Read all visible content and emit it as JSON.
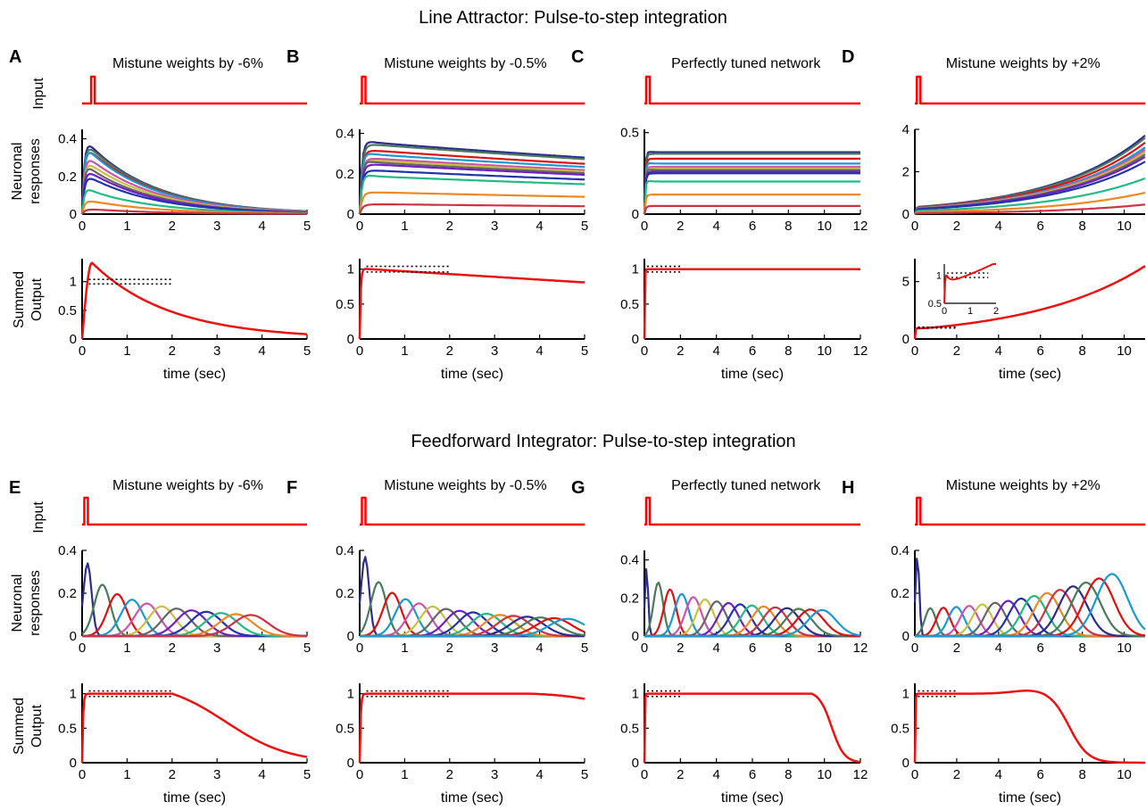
{
  "titles": {
    "top": "Line Attractor: Pulse-to-step integration",
    "bottom": "Feedforward Integrator: Pulse-to-step integration"
  },
  "row_labels": {
    "input": "Input",
    "neuronal_1": "Neuronal",
    "neuronal_2": "responses",
    "summed_1": "Summed",
    "summed_2": "Output"
  },
  "xlabel": "time (sec)",
  "colors": {
    "input": "#ff0000",
    "output": "#ee1111",
    "axis": "#000000",
    "dotted": "#000000",
    "neurons": [
      "#2c2c8c",
      "#4a7a5a",
      "#dd1111",
      "#1a9ad0",
      "#cc55aa",
      "#c8c040",
      "#666666",
      "#7020c0",
      "#2233aa",
      "#22bb88",
      "#ee8822",
      "#cc3344"
    ]
  },
  "chart_data": [
    {
      "id": "A",
      "network": "line-attractor",
      "subtitle": "Mistune weights by -6%",
      "type": "line",
      "input": {
        "pulse_t": 0.2,
        "xmax": 5
      },
      "neuronal": {
        "xlim": [
          0,
          5
        ],
        "ylim": [
          0,
          0.45
        ],
        "xticks": [
          0,
          1,
          2,
          3,
          4,
          5
        ],
        "yticks": [
          0,
          0.2,
          0.4
        ],
        "initial": [
          0.41,
          0.4,
          0.38,
          0.37,
          0.33,
          0.3,
          0.27,
          0.25,
          0.22,
          0.14,
          0.08,
          0.03
        ],
        "rate_per_sec": -0.66
      },
      "summed": {
        "xlim": [
          0,
          5
        ],
        "ylim": [
          0,
          1.4
        ],
        "xticks": [
          0,
          1,
          2,
          3,
          4,
          5
        ],
        "yticks": [
          0,
          0.5,
          1
        ],
        "peak": 1.33,
        "peak_t": 0.22,
        "end_value": 0.09
      }
    },
    {
      "id": "B",
      "network": "line-attractor",
      "subtitle": "Mistune weights by -0.5%",
      "type": "line",
      "input": {
        "pulse_t": 0.05,
        "xmax": 5
      },
      "neuronal": {
        "xlim": [
          0,
          5
        ],
        "ylim": [
          0,
          0.42
        ],
        "xticks": [
          0,
          1,
          2,
          3,
          4,
          5
        ],
        "yticks": [
          0,
          0.2,
          0.4
        ],
        "initial": [
          0.36,
          0.35,
          0.32,
          0.3,
          0.28,
          0.27,
          0.26,
          0.25,
          0.22,
          0.19,
          0.11,
          0.05
        ],
        "rate_per_sec": -0.05
      },
      "summed": {
        "xlim": [
          0,
          5
        ],
        "ylim": [
          0,
          1.15
        ],
        "xticks": [
          0,
          1,
          2,
          3,
          4,
          5
        ],
        "yticks": [
          0,
          0.5,
          1
        ],
        "start_value": 1.01,
        "end_value": 0.81
      }
    },
    {
      "id": "C",
      "network": "line-attractor",
      "subtitle": "Perfectly tuned network",
      "type": "line",
      "input": {
        "pulse_t": 0.1,
        "xmax": 12
      },
      "neuronal": {
        "xlim": [
          0,
          12
        ],
        "ylim": [
          0,
          0.52
        ],
        "xticks": [
          0,
          2,
          4,
          6,
          8,
          10,
          12
        ],
        "yticks": [
          0,
          0.5
        ],
        "initial": [
          0.38,
          0.37,
          0.34,
          0.31,
          0.29,
          0.28,
          0.27,
          0.26,
          0.25,
          0.2,
          0.12,
          0.05
        ],
        "rate_per_sec": 0
      },
      "summed": {
        "xlim": [
          0,
          12
        ],
        "ylim": [
          0,
          1.15
        ],
        "xticks": [
          0,
          2,
          4,
          6,
          8,
          10,
          12
        ],
        "yticks": [
          0,
          0.5,
          1
        ],
        "value": 1.0
      }
    },
    {
      "id": "D",
      "network": "line-attractor",
      "subtitle": "Mistune weights by +2%",
      "type": "line",
      "input": {
        "pulse_t": 0.1,
        "xmax": 11
      },
      "neuronal": {
        "xlim": [
          0,
          11
        ],
        "ylim": [
          0,
          4
        ],
        "xticks": [
          0,
          2,
          4,
          6,
          8,
          10
        ],
        "yticks": [
          0,
          2,
          4
        ],
        "initial": [
          0.33,
          0.32,
          0.3,
          0.28,
          0.27,
          0.26,
          0.25,
          0.24,
          0.22,
          0.15,
          0.09,
          0.04
        ],
        "rate_per_sec": 0.22
      },
      "summed": {
        "xlim": [
          0,
          11
        ],
        "ylim": [
          0,
          7
        ],
        "xticks": [
          0,
          2,
          4,
          6,
          8,
          10
        ],
        "yticks": [
          0,
          5
        ],
        "start_value": 0.95,
        "end_value": 6.8
      },
      "inset": {
        "xlim": [
          0,
          2
        ],
        "ylim": [
          0.5,
          1.2
        ],
        "xticks": [
          0,
          1,
          2
        ],
        "ytick_labels": [
          "0.5",
          "1"
        ]
      }
    },
    {
      "id": "E",
      "network": "feedforward",
      "subtitle": "Mistune weights by -6%",
      "type": "line",
      "input": {
        "pulse_t": 0.05,
        "xmax": 5
      },
      "neuronal": {
        "xlim": [
          0,
          5
        ],
        "ylim": [
          0,
          0.4
        ],
        "xticks": [
          0,
          1,
          2,
          3,
          4,
          5
        ],
        "yticks": [
          0,
          0.2,
          0.4
        ],
        "first_peak": 0.34,
        "peak_decay": 0.5,
        "stages": 12,
        "stage_spacing_sec": 0.33
      },
      "summed": {
        "xlim": [
          0,
          5
        ],
        "ylim": [
          0,
          1.15
        ],
        "xticks": [
          0,
          1,
          2,
          3,
          4,
          5
        ],
        "yticks": [
          0,
          0.5,
          1
        ],
        "plateau_end": 2.0,
        "end_value": 0.2
      }
    },
    {
      "id": "F",
      "network": "feedforward",
      "subtitle": "Mistune weights by -0.5%",
      "type": "line",
      "input": {
        "pulse_t": 0.05,
        "xmax": 5
      },
      "neuronal": {
        "xlim": [
          0,
          5
        ],
        "ylim": [
          0,
          0.4
        ],
        "xticks": [
          0,
          1,
          2,
          3,
          4,
          5
        ],
        "yticks": [
          0,
          0.2,
          0.4
        ],
        "first_peak": 0.37,
        "peak_decay": 0.55,
        "stages": 16,
        "stage_spacing_sec": 0.3
      },
      "summed": {
        "xlim": [
          0,
          5
        ],
        "ylim": [
          0,
          1.15
        ],
        "xticks": [
          0,
          1,
          2,
          3,
          4,
          5
        ],
        "yticks": [
          0,
          0.5,
          1
        ],
        "plateau_end": 3.8,
        "end_value": 0.9
      }
    },
    {
      "id": "G",
      "network": "feedforward",
      "subtitle": "Perfectly tuned network",
      "type": "line",
      "input": {
        "pulse_t": 0.1,
        "xmax": 12
      },
      "neuronal": {
        "xlim": [
          0,
          12
        ],
        "ylim": [
          0,
          0.45
        ],
        "xticks": [
          0,
          2,
          4,
          6,
          8,
          10,
          12
        ],
        "yticks": [
          0,
          0.2,
          0.4
        ],
        "first_peak": 0.36,
        "peak_decay": 0.35,
        "stages": 16,
        "stage_spacing_sec": 0.65
      },
      "summed": {
        "xlim": [
          0,
          12
        ],
        "ylim": [
          0,
          1.15
        ],
        "xticks": [
          0,
          2,
          4,
          6,
          8,
          10,
          12
        ],
        "yticks": [
          0,
          0.5,
          1
        ],
        "plateau_end": 9.3,
        "end_value": 0.12
      }
    },
    {
      "id": "H",
      "network": "feedforward",
      "subtitle": "Mistune weights by +2%",
      "type": "line",
      "input": {
        "pulse_t": 0.1,
        "xmax": 11
      },
      "neuronal": {
        "xlim": [
          0,
          11
        ],
        "ylim": [
          0,
          0.4
        ],
        "xticks": [
          0,
          2,
          4,
          6,
          8,
          10
        ],
        "yticks": [
          0,
          0.2,
          0.4
        ],
        "first_peak": 0.38,
        "peak_decay": 0.4,
        "stages": 16,
        "stage_spacing_sec": 0.62,
        "late_peak": 0.29
      },
      "summed": {
        "xlim": [
          0,
          11
        ],
        "ylim": [
          0,
          1.15
        ],
        "xticks": [
          0,
          2,
          4,
          6,
          8,
          10
        ],
        "yticks": [
          0,
          0.5,
          1
        ],
        "bump_peak": 1.06,
        "bump_t": 5.8,
        "end_value": 0.0
      }
    }
  ]
}
